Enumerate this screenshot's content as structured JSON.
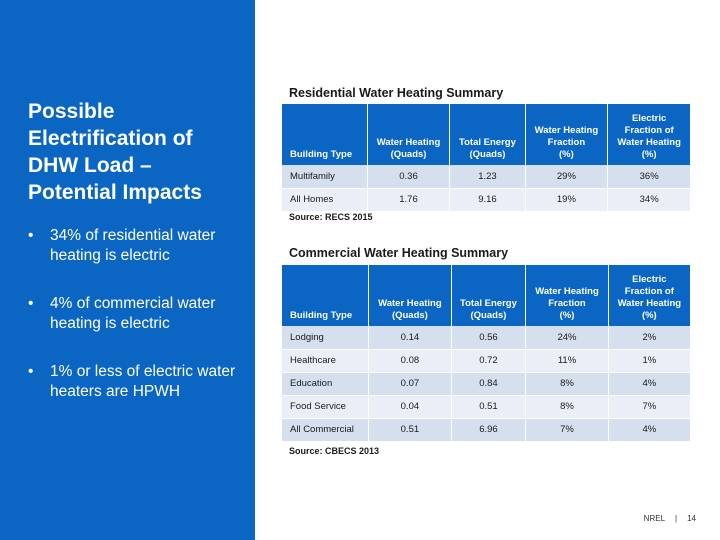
{
  "left_panel": {
    "title": "Possible\nElectrification of\nDHW Load –\nPotential Impacts",
    "bullets": [
      "34% of residential water heating is electric",
      "4% of commercial water heating is electric",
      "1% or less of electric water heaters are HPWH"
    ],
    "bullet_glyph": "•"
  },
  "residential": {
    "title": "Residential Water Heating Summary",
    "headers": [
      "Building Type",
      "Water Heating\n(Quads)",
      "Total Energy\n(Quads)",
      "Water Heating\nFraction\n(%)",
      "Electric\nFraction of\nWater Heating\n(%)"
    ],
    "rows": [
      [
        "Multifamily",
        "0.36",
        "1.23",
        "29%",
        "36%"
      ],
      [
        "All Homes",
        "1.76",
        "9.16",
        "19%",
        "34%"
      ]
    ],
    "source": "Source: RECS 2015"
  },
  "commercial": {
    "title": "Commercial Water Heating Summary",
    "headers": [
      "Building Type",
      "Water Heating\n(Quads)",
      "Total Energy\n(Quads)",
      "Water Heating\nFraction\n(%)",
      "Electric\nFraction of\nWater Heating\n(%)"
    ],
    "rows": [
      [
        "Lodging",
        "0.14",
        "0.56",
        "24%",
        "2%"
      ],
      [
        "Healthcare",
        "0.08",
        "0.72",
        "11%",
        "1%"
      ],
      [
        "Education",
        "0.07",
        "0.84",
        "8%",
        "4%"
      ],
      [
        "Food Service",
        "0.04",
        "0.51",
        "8%",
        "7%"
      ],
      [
        "All Commercial",
        "0.51",
        "6.96",
        "7%",
        "4%"
      ]
    ],
    "source": "Source: CBECS 2013"
  },
  "footer": {
    "org": "NREL",
    "separator": "|",
    "page_number": "14"
  },
  "colors": {
    "panel_blue": "#0b66c3",
    "row_odd": "#d5dfee",
    "row_even": "#eaeff7"
  }
}
